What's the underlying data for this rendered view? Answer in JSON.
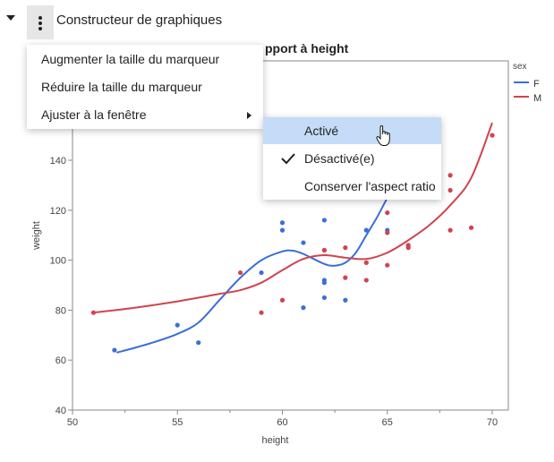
{
  "header": {
    "title": "Constructeur de graphiques",
    "collapse_icon": "caret-down-icon",
    "menu_icon": "kebab-menu-icon"
  },
  "chart_title_visible": "pport à height",
  "menu": {
    "items": [
      {
        "label": "Augmenter la taille du marqueur"
      },
      {
        "label": "Réduire la taille du marqueur"
      },
      {
        "label": "Ajuster à la fenêtre",
        "submenu": true
      }
    ]
  },
  "submenu": {
    "items": [
      {
        "label": "Activé",
        "highlighted": true,
        "checked": false
      },
      {
        "label": "Désactivé(e)",
        "highlighted": false,
        "checked": true
      },
      {
        "label": "Conserver l'aspect ratio",
        "highlighted": false,
        "checked": false
      }
    ]
  },
  "colors": {
    "F": "#3a6fd8",
    "M": "#d0434f",
    "axis": "#8a8a8a",
    "highlight": "#c5dcf8"
  },
  "chart_data": {
    "type": "scatter",
    "title": "weight par rapport à height",
    "xlabel": "height",
    "ylabel": "weight",
    "xlim": [
      50,
      70.8
    ],
    "ylim": [
      40,
      153
    ],
    "xticks": [
      50,
      55,
      60,
      65,
      70
    ],
    "yticks": [
      40,
      60,
      80,
      100,
      120,
      140
    ],
    "grid": false,
    "legend": {
      "title": "sex",
      "position": "right",
      "entries": [
        "F",
        "M"
      ]
    },
    "series": [
      {
        "name": "F",
        "points": [
          [
            52,
            64
          ],
          [
            55,
            74
          ],
          [
            56,
            67
          ],
          [
            59,
            95
          ],
          [
            60,
            115
          ],
          [
            60,
            112
          ],
          [
            61,
            107
          ],
          [
            61,
            81
          ],
          [
            62,
            116
          ],
          [
            62,
            92
          ],
          [
            62,
            91
          ],
          [
            62,
            85
          ],
          [
            63,
            84
          ],
          [
            64,
            112
          ],
          [
            65,
            112
          ]
        ],
        "smoother": [
          [
            52.1,
            63
          ],
          [
            53,
            65
          ],
          [
            54,
            67.5
          ],
          [
            55,
            70.5
          ],
          [
            56,
            75
          ],
          [
            57,
            84
          ],
          [
            58,
            93
          ],
          [
            59,
            100
          ],
          [
            60,
            103.5
          ],
          [
            60.5,
            103.8
          ],
          [
            61,
            102.5
          ],
          [
            62,
            98.5
          ],
          [
            62.5,
            97.8
          ],
          [
            63,
            99
          ],
          [
            63.5,
            103
          ],
          [
            64,
            110
          ],
          [
            64.5,
            117
          ],
          [
            65,
            125
          ]
        ]
      },
      {
        "name": "M",
        "points": [
          [
            51,
            79
          ],
          [
            58,
            95
          ],
          [
            59,
            79
          ],
          [
            60,
            84
          ],
          [
            62,
            104
          ],
          [
            62,
            104
          ],
          [
            63,
            105
          ],
          [
            63,
            93
          ],
          [
            64,
            99
          ],
          [
            64,
            92
          ],
          [
            65,
            119
          ],
          [
            65,
            111
          ],
          [
            65,
            98
          ],
          [
            66,
            106
          ],
          [
            66,
            105
          ],
          [
            68,
            134
          ],
          [
            68,
            128
          ],
          [
            68,
            112
          ],
          [
            69,
            113
          ],
          [
            70,
            150
          ]
        ],
        "smoother": [
          [
            51,
            79
          ],
          [
            53,
            81
          ],
          [
            55,
            83.5
          ],
          [
            57,
            86.5
          ],
          [
            58,
            88
          ],
          [
            59,
            91
          ],
          [
            60,
            96
          ],
          [
            61,
            100.5
          ],
          [
            62,
            102
          ],
          [
            63,
            101
          ],
          [
            64,
            100.5
          ],
          [
            65,
            103
          ],
          [
            66,
            108
          ],
          [
            67,
            114
          ],
          [
            68,
            122
          ],
          [
            69,
            133
          ],
          [
            70,
            155
          ]
        ]
      }
    ]
  }
}
